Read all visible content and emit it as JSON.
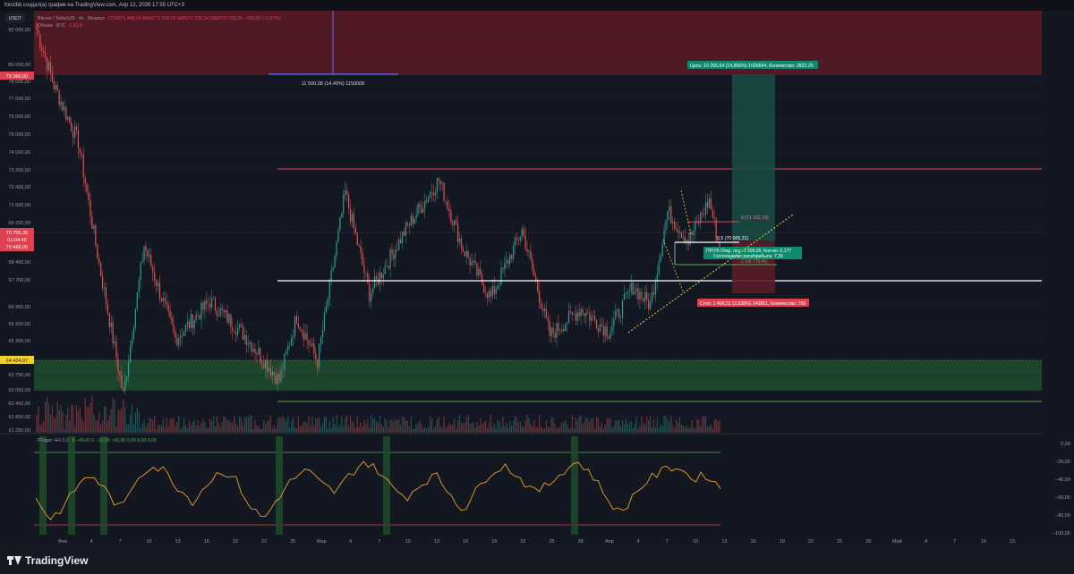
{
  "window": {
    "header_text": "fonzibit создал(а) график на TradingView.com, Апр 12, 2026 17:55 UTC+3",
    "brand": "TradingView"
  },
  "legend": {
    "symbol": "Bitcoin / TetherUS · 4ч · Binance",
    "ohlc": "ОТКР71 488,54  МАКС71 500,00  МИН70 705,34  ЗАКР70 705,35  −783,20 (−1,07%)",
    "volume_label": "Объём · BTC",
    "volume_value": "1,81 K",
    "currency": "USDT"
  },
  "indicator": {
    "name": "PFager HH 3.2",
    "values": "8  −49,43  0  −10,00  −90,00  0,00  0,00  0,00"
  },
  "price_axis": {
    "ticks": [
      "82 000,00",
      "80 000,00",
      "78 000,00",
      "77 000,00",
      "76 000,00",
      "75 000,00",
      "74 000,00",
      "73 200,00",
      "72 400,00",
      "71 600,00",
      "69 200,00",
      "68 400,00",
      "67 700,00",
      "66 950,00",
      "66 200,00",
      "65 350,00",
      "63 750,00",
      "63 050,00",
      "62 450,00",
      "61 850,00",
      "61 250,00"
    ],
    "badges": {
      "top_zone": "79 360,00",
      "last_price": "70 705,35",
      "countdown": "01:04:45",
      "prev": "70 466,00",
      "bottom_zone": "64 424,07"
    }
  },
  "osc_axis": {
    "ticks": [
      "0,00",
      "−20,00",
      "−40,00",
      "−60,00",
      "−80,00",
      "−100,00"
    ]
  },
  "time_axis": {
    "labels": [
      "Фев",
      "4",
      "7",
      "10",
      "13",
      "16",
      "19",
      "22",
      "25",
      "Мар",
      "4",
      "7",
      "10",
      "13",
      "16",
      "19",
      "22",
      "25",
      "28",
      "Апр",
      "4",
      "7",
      "10",
      "13",
      "16",
      "19",
      "22",
      "25",
      "28",
      "Май",
      "4",
      "7",
      "10",
      "13",
      "16"
    ]
  },
  "annotations": {
    "range_measure": "11 500,08 (14,49%) 1150008",
    "target": "Цель: 10 266,64 (14,856%) 1026664, Количество: 2822.25",
    "position_info_1": "ПР/УБ Откр. поз.: 1 596,05, Кол-во: 0,177",
    "position_info_2": "Соотношение риск/прибыль: 7,29",
    "stop": "Стоп: 1 408,51 (2,038%) 140851, Количество: 750",
    "fib_0": "0 (71 232,18)",
    "fib_05": "0,5 (70 005,31)",
    "fib_1": "1 (68 778,45)"
  },
  "chart_data": {
    "type": "candlestick",
    "timeframe": "4h",
    "y_range": [
      61000,
      83500
    ],
    "osc_range": [
      -100,
      0
    ],
    "levels": {
      "resistance_red": 74050,
      "support_white": 68250,
      "zone_top": [
        79360,
        83500
      ],
      "zone_bottom": [
        63050,
        64424.07
      ],
      "lower_line": 62450
    },
    "last_price": 70705.35,
    "key_points": [
      {
        "t": 0,
        "p": 82500
      },
      {
        "t": 10,
        "p": 79500
      },
      {
        "t": 24,
        "p": 76500
      },
      {
        "t": 36,
        "p": 70000
      },
      {
        "t": 50,
        "p": 63000
      },
      {
        "t": 62,
        "p": 71000
      },
      {
        "t": 80,
        "p": 66000
      },
      {
        "t": 100,
        "p": 68000
      },
      {
        "t": 120,
        "p": 66200
      },
      {
        "t": 140,
        "p": 63800
      },
      {
        "t": 150,
        "p": 67200
      },
      {
        "t": 162,
        "p": 64800
      },
      {
        "t": 178,
        "p": 73800
      },
      {
        "t": 192,
        "p": 68400
      },
      {
        "t": 214,
        "p": 72000
      },
      {
        "t": 232,
        "p": 74500
      },
      {
        "t": 246,
        "p": 70800
      },
      {
        "t": 262,
        "p": 68200
      },
      {
        "t": 280,
        "p": 71800
      },
      {
        "t": 296,
        "p": 66200
      },
      {
        "t": 314,
        "p": 67600
      },
      {
        "t": 330,
        "p": 66400
      },
      {
        "t": 344,
        "p": 68800
      },
      {
        "t": 354,
        "p": 67800
      },
      {
        "t": 364,
        "p": 72800
      },
      {
        "t": 376,
        "p": 71200
      },
      {
        "t": 388,
        "p": 73400
      },
      {
        "t": 394,
        "p": 70705
      }
    ],
    "oscillator": [
      -60,
      -85,
      -70,
      -45,
      -35,
      -55,
      -75,
      -40,
      -25,
      -30,
      -50,
      -65,
      -45,
      -30,
      -40,
      -70,
      -85,
      -60,
      -40,
      -30,
      -45,
      -55,
      -35,
      -20,
      -30,
      -50,
      -60,
      -45,
      -35,
      -55,
      -75,
      -50,
      -30,
      -25,
      -40,
      -55,
      -45,
      -30,
      -20,
      -35,
      -60,
      -80,
      -55,
      -40,
      -30,
      -25,
      -40,
      -35,
      -50
    ]
  }
}
